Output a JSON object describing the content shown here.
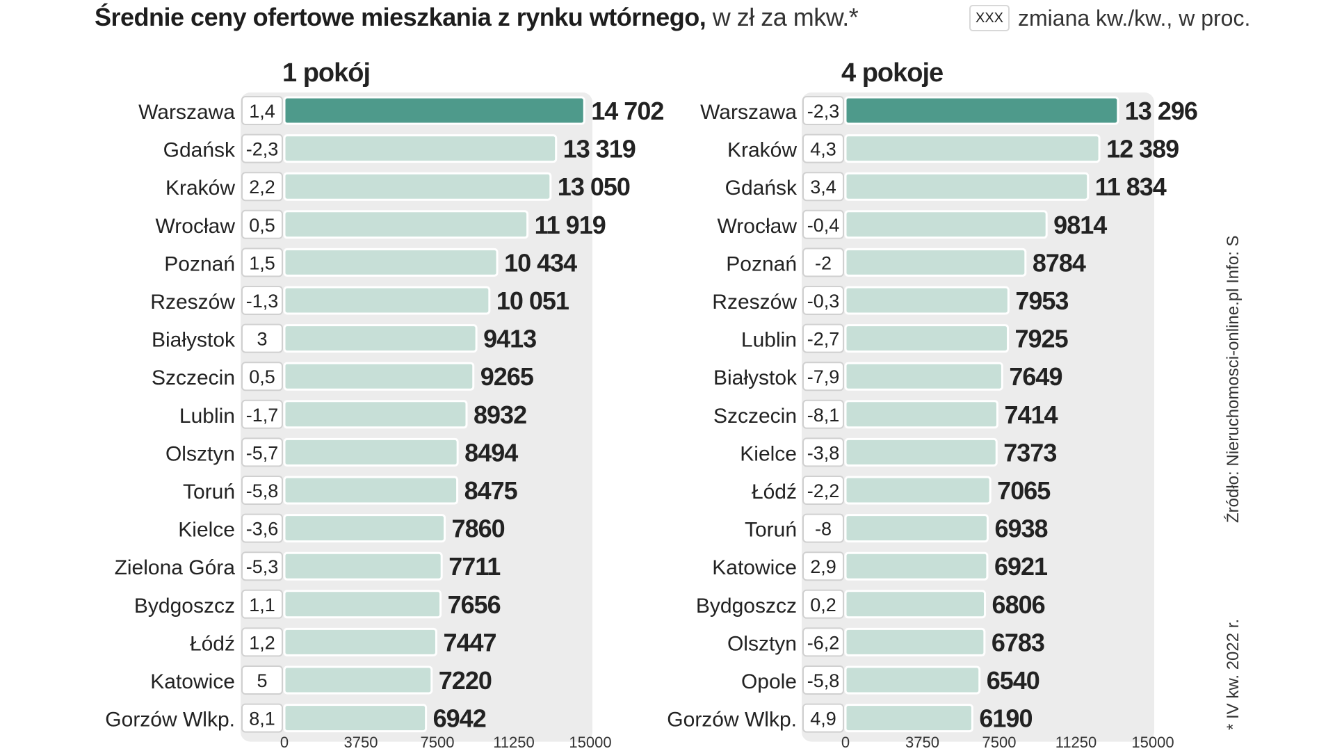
{
  "title": {
    "bold": "Średnie ceny ofertowe mieszkania z rynku wtórnego,",
    "light": " w zł za mkw.*"
  },
  "legend": {
    "box_label": "XXX",
    "text": "zmiana kw./kw., w proc."
  },
  "source": "Źródło: Nieruchomosci-online.pl   Info: S",
  "footnote": "* IV kw. 2022 r.",
  "colors": {
    "highlight_bar": "#4e9a8b",
    "bar": "#c7dfd7",
    "panel_bg": "#ececec"
  },
  "chart_data": [
    {
      "type": "bar",
      "orientation": "horizontal",
      "title": "1 pokój",
      "categories": [
        "Warszawa",
        "Gdańsk",
        "Kraków",
        "Wrocław",
        "Poznań",
        "Rzeszów",
        "Białystok",
        "Szczecin",
        "Lublin",
        "Olsztyn",
        "Toruń",
        "Kielce",
        "Zielona Góra",
        "Bydgoszcz",
        "Łódź",
        "Katowice",
        "Gorzów Wlkp."
      ],
      "values": [
        14702,
        13319,
        13050,
        11919,
        10434,
        10051,
        9413,
        9265,
        8932,
        8494,
        8475,
        7860,
        7711,
        7656,
        7447,
        7220,
        6942
      ],
      "value_labels": [
        "14 702",
        "13 319",
        "13 050",
        "11 919",
        "10 434",
        "10 051",
        "9413",
        "9265",
        "8932",
        "8494",
        "8475",
        "7860",
        "7711",
        "7656",
        "7447",
        "7220",
        "6942"
      ],
      "changes": [
        "1,4",
        "-2,3",
        "2,2",
        "0,5",
        "1,5",
        "-1,3",
        "3",
        "0,5",
        "-1,7",
        "-5,7",
        "-5,8",
        "-3,6",
        "-5,3",
        "1,1",
        "1,2",
        "5",
        "8,1"
      ],
      "xlim": [
        0,
        15000
      ],
      "ticks": [
        "0",
        "3750",
        "7500",
        "11250",
        "15000"
      ]
    },
    {
      "type": "bar",
      "orientation": "horizontal",
      "title": "4 pokoje",
      "categories": [
        "Warszawa",
        "Kraków",
        "Gdańsk",
        "Wrocław",
        "Poznań",
        "Rzeszów",
        "Lublin",
        "Białystok",
        "Szczecin",
        "Kielce",
        "Łódź",
        "Toruń",
        "Katowice",
        "Bydgoszcz",
        "Olsztyn",
        "Opole",
        "Gorzów Wlkp."
      ],
      "values": [
        13296,
        12389,
        11834,
        9814,
        8784,
        7953,
        7925,
        7649,
        7414,
        7373,
        7065,
        6938,
        6921,
        6806,
        6783,
        6540,
        6190
      ],
      "value_labels": [
        "13 296",
        "12 389",
        "11 834",
        "9814",
        "8784",
        "7953",
        "7925",
        "7649",
        "7414",
        "7373",
        "7065",
        "6938",
        "6921",
        "6806",
        "6783",
        "6540",
        "6190"
      ],
      "changes": [
        "-2,3",
        "4,3",
        "3,4",
        "-0,4",
        "-2",
        "-0,3",
        "-2,7",
        "-7,9",
        "-8,1",
        "-3,8",
        "-2,2",
        "-8",
        "2,9",
        "0,2",
        "-6,2",
        "-5,8",
        "4,9"
      ],
      "xlim": [
        0,
        15000
      ],
      "ticks": [
        "0",
        "3750",
        "7500",
        "11250",
        "15000"
      ]
    }
  ]
}
